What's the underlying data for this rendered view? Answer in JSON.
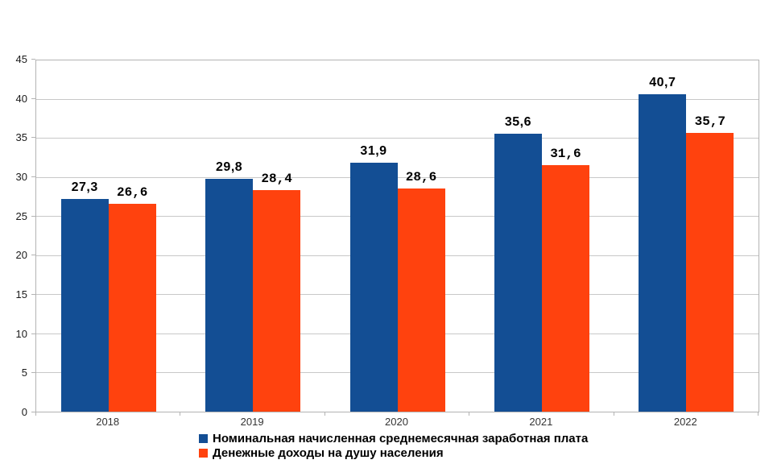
{
  "chart_data": {
    "type": "bar",
    "title": "",
    "categories": [
      "2018",
      "2019",
      "2020",
      "2021",
      "2022"
    ],
    "series": [
      {
        "name": "Номинальная начисленная среднемесячная заработная плата",
        "color": "#134e94",
        "values": [
          27.3,
          29.8,
          31.9,
          35.6,
          40.7
        ],
        "value_labels": [
          "27,3",
          "29,8",
          "31,9",
          "35,6",
          "40,7"
        ]
      },
      {
        "name": "Денежные доходы на душу населения",
        "color": "#ff420e",
        "values": [
          26.6,
          28.4,
          28.6,
          31.6,
          35.7
        ],
        "value_labels": [
          "26,6",
          "28,4",
          "28,6",
          "31,6",
          "35,7"
        ]
      }
    ],
    "ylim": [
      0,
      45
    ],
    "yticks": [
      0,
      5,
      10,
      15,
      20,
      25,
      30,
      35,
      40,
      45
    ],
    "grid": "horizontal",
    "legend_position": "bottom",
    "colors": {
      "grid": "#c8c8c8",
      "axis": "#b3b3b3",
      "tick_label": "#1a1a1a",
      "background": "#ffffff"
    }
  }
}
